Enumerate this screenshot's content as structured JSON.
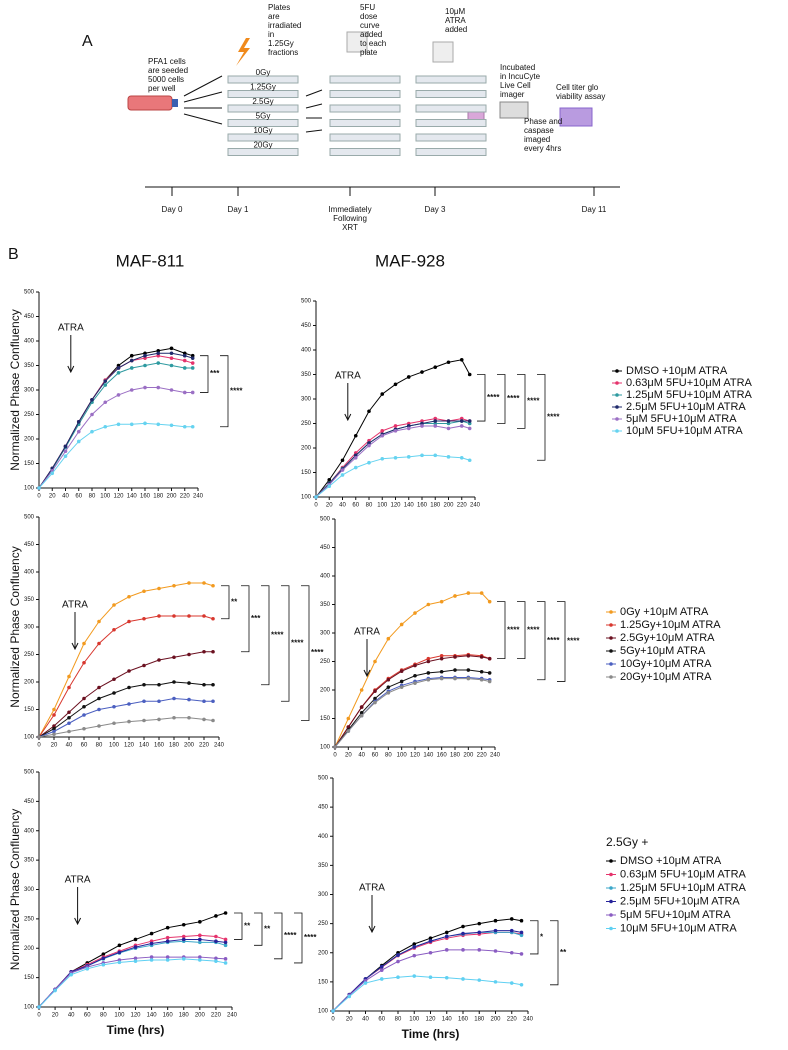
{
  "panel_a": {
    "label": "A",
    "steps": [
      {
        "lines": [
          "PFA1 cells",
          "are seeded",
          "5000 cells",
          "per well"
        ]
      },
      {
        "lines": [
          "Plates",
          "are",
          "irradiated",
          "in",
          "1.25Gy",
          "fractions"
        ]
      },
      {
        "lines": [
          "5FU",
          "dose",
          "curve",
          "added",
          "to each",
          "plate"
        ]
      },
      {
        "lines": [
          "10μM",
          "ATRA",
          "added"
        ]
      },
      {
        "lines": [
          "Incubated",
          "in IncuCyte",
          "Live Cell",
          "imager"
        ]
      },
      {
        "lines": [
          "Phase and",
          "caspase",
          "imaged",
          "every 4hrs"
        ]
      },
      {
        "lines": [
          "Cell titer glo",
          "viability assay"
        ]
      }
    ],
    "doses": [
      "0Gy",
      "1.25Gy",
      "2.5Gy",
      "5Gy",
      "10Gy",
      "20Gy"
    ],
    "timeline": [
      {
        "lines": [
          "Day 0"
        ]
      },
      {
        "lines": [
          "Day 1"
        ]
      },
      {
        "lines": [
          "Immediately",
          "Following",
          "XRT"
        ]
      },
      {
        "lines": [
          "Day 3"
        ]
      },
      {
        "lines": [
          "Day 11"
        ]
      }
    ]
  },
  "panel_b": {
    "label": "B"
  },
  "chart_data": [
    {
      "type": "line",
      "title": "MAF-811",
      "ylabel": "Normalized Phase Confluency",
      "annotation": {
        "text": "ATRA",
        "x": 48
      },
      "x": [
        0,
        20,
        40,
        60,
        80,
        100,
        120,
        140,
        160,
        180,
        200,
        220,
        232
      ],
      "xlim": [
        0,
        240
      ],
      "xticks": [
        0,
        20,
        40,
        60,
        80,
        100,
        120,
        140,
        160,
        180,
        200,
        220,
        240
      ],
      "ylim": [
        100,
        500
      ],
      "yticks": [
        100,
        150,
        200,
        250,
        300,
        350,
        400,
        450,
        500
      ],
      "significance": [
        "***",
        "****"
      ],
      "series": [
        {
          "color": "#000000",
          "values": [
            100,
            140,
            185,
            235,
            280,
            320,
            350,
            370,
            375,
            380,
            385,
            375,
            370
          ]
        },
        {
          "color": "#e5336c",
          "values": [
            100,
            140,
            185,
            235,
            280,
            320,
            345,
            360,
            365,
            370,
            365,
            360,
            355
          ]
        },
        {
          "color": "#2e9aa0",
          "values": [
            100,
            138,
            183,
            230,
            275,
            310,
            335,
            345,
            350,
            355,
            350,
            345,
            345
          ]
        },
        {
          "color": "#1f2a6b",
          "values": [
            100,
            140,
            185,
            235,
            280,
            318,
            345,
            360,
            370,
            375,
            375,
            370,
            365
          ]
        },
        {
          "color": "#9b6fc4",
          "values": [
            100,
            135,
            175,
            215,
            250,
            275,
            290,
            300,
            305,
            305,
            300,
            295,
            295
          ]
        },
        {
          "color": "#66d3f0",
          "values": [
            100,
            130,
            165,
            195,
            215,
            225,
            230,
            230,
            232,
            230,
            228,
            225,
            225
          ]
        }
      ]
    },
    {
      "type": "line",
      "title": "MAF-928",
      "annotation": {
        "text": "ATRA",
        "x": 48
      },
      "x": [
        0,
        20,
        40,
        60,
        80,
        100,
        120,
        140,
        160,
        180,
        200,
        220,
        232
      ],
      "xlim": [
        0,
        240
      ],
      "xticks": [
        0,
        20,
        40,
        60,
        80,
        100,
        120,
        140,
        160,
        180,
        200,
        220,
        240
      ],
      "ylim": [
        100,
        500
      ],
      "yticks": [
        100,
        150,
        200,
        250,
        300,
        350,
        400,
        450,
        500
      ],
      "significance": [
        "****",
        "****",
        "****",
        "****"
      ],
      "series": [
        {
          "name": "DMSO +10μM ATRA",
          "color": "#000000",
          "values": [
            100,
            135,
            175,
            225,
            275,
            310,
            330,
            345,
            355,
            365,
            375,
            380,
            350
          ]
        },
        {
          "name": "0.63μM 5FU+10μM ATRA",
          "color": "#e5336c",
          "values": [
            100,
            128,
            160,
            190,
            215,
            235,
            245,
            250,
            255,
            260,
            255,
            260,
            255
          ]
        },
        {
          "name": "1.25μM 5FU+10μM ATRA",
          "color": "#2e9aa0",
          "values": [
            100,
            128,
            158,
            185,
            210,
            228,
            238,
            245,
            250,
            250,
            250,
            255,
            250
          ]
        },
        {
          "name": "2.5μM 5FU+10μM ATRA",
          "color": "#1f2a6b",
          "values": [
            100,
            127,
            157,
            185,
            210,
            228,
            238,
            245,
            250,
            255,
            255,
            255,
            255
          ]
        },
        {
          "name": "5μM 5FU+10μM ATRA",
          "color": "#9b6fc4",
          "values": [
            100,
            125,
            155,
            180,
            205,
            225,
            235,
            240,
            245,
            245,
            240,
            245,
            240
          ]
        },
        {
          "name": "10μM 5FU+10μM ATRA",
          "color": "#66d3f0",
          "values": [
            100,
            122,
            145,
            160,
            170,
            178,
            180,
            182,
            185,
            185,
            182,
            180,
            175
          ]
        }
      ]
    },
    {
      "type": "line",
      "ylabel": "Normalized Phase Confluency",
      "annotation": {
        "text": "ATRA",
        "x": 48
      },
      "x": [
        0,
        20,
        40,
        60,
        80,
        100,
        120,
        140,
        160,
        180,
        200,
        220,
        232
      ],
      "xlim": [
        0,
        240
      ],
      "xticks": [
        0,
        20,
        40,
        60,
        80,
        100,
        120,
        140,
        160,
        180,
        200,
        220,
        240
      ],
      "ylim": [
        100,
        500
      ],
      "yticks": [
        100,
        150,
        200,
        250,
        300,
        350,
        400,
        450,
        500
      ],
      "significance": [
        "**",
        "***",
        "****",
        "****",
        "****"
      ],
      "series": [
        {
          "color": "#f29a1f",
          "values": [
            100,
            150,
            210,
            270,
            310,
            340,
            355,
            365,
            370,
            375,
            380,
            380,
            375
          ]
        },
        {
          "color": "#d8372e",
          "values": [
            100,
            140,
            190,
            235,
            270,
            295,
            310,
            315,
            320,
            320,
            320,
            320,
            315
          ]
        },
        {
          "color": "#6b1020",
          "values": [
            100,
            120,
            145,
            170,
            190,
            205,
            220,
            230,
            240,
            245,
            250,
            255,
            255
          ]
        },
        {
          "color": "#111111",
          "values": [
            100,
            115,
            135,
            155,
            170,
            180,
            190,
            195,
            195,
            200,
            198,
            195,
            195
          ]
        },
        {
          "color": "#4b5fc0",
          "values": [
            100,
            110,
            125,
            140,
            150,
            155,
            160,
            165,
            165,
            170,
            168,
            165,
            165
          ]
        },
        {
          "color": "#8a8a8a",
          "values": [
            100,
            105,
            110,
            115,
            120,
            125,
            128,
            130,
            132,
            135,
            135,
            132,
            130
          ]
        }
      ]
    },
    {
      "type": "line",
      "annotation": {
        "text": "ATRA",
        "x": 48
      },
      "x": [
        0,
        20,
        40,
        60,
        80,
        100,
        120,
        140,
        160,
        180,
        200,
        220,
        232
      ],
      "xlim": [
        0,
        240
      ],
      "xticks": [
        0,
        20,
        40,
        60,
        80,
        100,
        120,
        140,
        160,
        180,
        200,
        220,
        240
      ],
      "ylim": [
        100,
        500
      ],
      "yticks": [
        100,
        150,
        200,
        250,
        300,
        350,
        400,
        450,
        500
      ],
      "significance": [
        "****",
        "****",
        "****",
        "****"
      ],
      "series": [
        {
          "name": "0Gy +10μM ATRA",
          "color": "#f29a1f",
          "values": [
            100,
            150,
            200,
            250,
            290,
            315,
            335,
            350,
            355,
            365,
            370,
            370,
            355
          ]
        },
        {
          "name": "1.25Gy+10μM ATRA",
          "color": "#d8372e",
          "values": [
            100,
            135,
            170,
            200,
            220,
            235,
            245,
            255,
            260,
            260,
            262,
            260,
            255
          ]
        },
        {
          "name": "2.5Gy+10μM ATRA",
          "color": "#6b1020",
          "values": [
            100,
            135,
            170,
            198,
            218,
            233,
            243,
            250,
            255,
            258,
            260,
            258,
            255
          ]
        },
        {
          "name": "5Gy+10μM ATRA",
          "color": "#111111",
          "values": [
            100,
            130,
            160,
            185,
            205,
            215,
            225,
            230,
            232,
            235,
            235,
            232,
            230
          ]
        },
        {
          "name": "10Gy+10μM ATRA",
          "color": "#4b5fc0",
          "values": [
            100,
            128,
            155,
            180,
            198,
            208,
            215,
            220,
            222,
            222,
            222,
            220,
            218
          ]
        },
        {
          "name": "20Gy+10μM ATRA",
          "color": "#8a8a8a",
          "values": [
            100,
            128,
            155,
            178,
            195,
            205,
            212,
            218,
            220,
            220,
            220,
            218,
            215
          ]
        }
      ]
    },
    {
      "type": "line",
      "ylabel": "Normalized Phase Confluency",
      "xlabel": "Time (hrs)",
      "annotation": {
        "text": "ATRA",
        "x": 48
      },
      "x": [
        0,
        20,
        40,
        60,
        80,
        100,
        120,
        140,
        160,
        180,
        200,
        220,
        232
      ],
      "xlim": [
        0,
        240
      ],
      "xticks": [
        0,
        20,
        40,
        60,
        80,
        100,
        120,
        140,
        160,
        180,
        200,
        220,
        240
      ],
      "ylim": [
        100,
        500
      ],
      "yticks": [
        100,
        150,
        200,
        250,
        300,
        350,
        400,
        450,
        500
      ],
      "significance": [
        "**",
        "**",
        "****",
        "****"
      ],
      "series": [
        {
          "color": "#000000",
          "values": [
            100,
            130,
            160,
            175,
            190,
            205,
            215,
            225,
            235,
            240,
            245,
            255,
            260
          ]
        },
        {
          "color": "#e5336c",
          "values": [
            100,
            130,
            160,
            172,
            185,
            195,
            205,
            212,
            218,
            220,
            222,
            220,
            215
          ]
        },
        {
          "color": "#3ba7c9",
          "values": [
            100,
            130,
            158,
            170,
            182,
            192,
            200,
            205,
            210,
            212,
            210,
            210,
            205
          ]
        },
        {
          "color": "#27239a",
          "values": [
            100,
            130,
            160,
            170,
            183,
            193,
            202,
            208,
            212,
            215,
            215,
            212,
            210
          ]
        },
        {
          "color": "#8a5cc2",
          "values": [
            100,
            130,
            158,
            168,
            175,
            180,
            183,
            185,
            185,
            185,
            185,
            183,
            182
          ]
        },
        {
          "color": "#5fd0f2",
          "values": [
            100,
            128,
            155,
            165,
            172,
            176,
            178,
            180,
            180,
            182,
            180,
            178,
            175
          ]
        }
      ]
    },
    {
      "type": "line",
      "xlabel": "Time (hrs)",
      "legend_title": "2.5Gy +",
      "annotation": {
        "text": "ATRA",
        "x": 48
      },
      "x": [
        0,
        20,
        40,
        60,
        80,
        100,
        120,
        140,
        160,
        180,
        200,
        220,
        232
      ],
      "xlim": [
        0,
        240
      ],
      "xticks": [
        0,
        20,
        40,
        60,
        80,
        100,
        120,
        140,
        160,
        180,
        200,
        220,
        240
      ],
      "ylim": [
        100,
        500
      ],
      "yticks": [
        100,
        150,
        200,
        250,
        300,
        350,
        400,
        450,
        500
      ],
      "significance": [
        "*",
        "**"
      ],
      "series": [
        {
          "name": "DMSO +10μM ATRA",
          "color": "#000000",
          "values": [
            100,
            128,
            155,
            178,
            200,
            215,
            225,
            235,
            245,
            250,
            255,
            258,
            255
          ]
        },
        {
          "name": "0.63μM 5FU+10μM ATRA",
          "color": "#e5336c",
          "values": [
            100,
            128,
            155,
            175,
            195,
            208,
            218,
            225,
            230,
            232,
            235,
            235,
            232
          ]
        },
        {
          "name": "1.25μM 5FU+10μM ATRA",
          "color": "#3ba7c9",
          "values": [
            100,
            128,
            155,
            176,
            196,
            210,
            220,
            228,
            232,
            235,
            235,
            235,
            230
          ]
        },
        {
          "name": "2.5μM 5FU+10μM ATRA",
          "color": "#27239a",
          "values": [
            100,
            128,
            155,
            176,
            196,
            210,
            220,
            228,
            233,
            235,
            238,
            238,
            235
          ]
        },
        {
          "name": "5μM 5FU+10μM ATRA",
          "color": "#8a5cc2",
          "values": [
            100,
            127,
            152,
            170,
            185,
            195,
            200,
            205,
            205,
            205,
            203,
            200,
            198
          ]
        },
        {
          "name": "10μM 5FU+10μM ATRA",
          "color": "#5fd0f2",
          "values": [
            100,
            125,
            148,
            155,
            158,
            160,
            158,
            157,
            155,
            153,
            150,
            148,
            145
          ]
        }
      ]
    }
  ]
}
